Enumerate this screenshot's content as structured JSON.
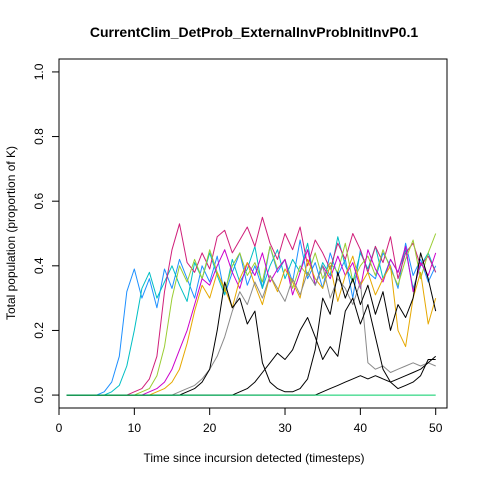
{
  "chart_data": {
    "type": "line",
    "title": "CurrentClim_DetProb_ExternalInvProbInitInvP0.1",
    "xlabel": "Time since incursion detected (timesteps)",
    "ylabel": "Total population (proportion of K)",
    "xlim": [
      0,
      51.5
    ],
    "ylim": [
      -0.04,
      1.04
    ],
    "x_ticks": [
      0,
      10,
      20,
      30,
      40,
      50
    ],
    "y_ticks": [
      0.0,
      0.2,
      0.4,
      0.6,
      0.8,
      1.0
    ],
    "x_tick_labels": [
      "0",
      "10",
      "20",
      "30",
      "40",
      "50"
    ],
    "y_tick_labels": [
      "0.0",
      "0.2",
      "0.4",
      "0.6",
      "0.8",
      "1.0"
    ],
    "grid": false,
    "legend": "none",
    "x": [
      1,
      2,
      3,
      4,
      5,
      6,
      7,
      8,
      9,
      10,
      11,
      12,
      13,
      14,
      15,
      16,
      17,
      18,
      19,
      20,
      21,
      22,
      23,
      24,
      25,
      26,
      27,
      28,
      29,
      30,
      31,
      32,
      33,
      34,
      35,
      36,
      37,
      38,
      39,
      40,
      41,
      42,
      43,
      44,
      45,
      46,
      47,
      48,
      49,
      50
    ],
    "series": [
      {
        "color": "#1E90FF",
        "values": [
          0,
          0,
          0,
          0,
          0,
          0.01,
          0.04,
          0.12,
          0.32,
          0.39,
          0.3,
          0.36,
          0.27,
          0.39,
          0.33,
          0.42,
          0.36,
          0.3,
          0.4,
          0.35,
          0.43,
          0.31,
          0.38,
          0.44,
          0.34,
          0.4,
          0.33,
          0.46,
          0.38,
          0.42,
          0.35,
          0.48,
          0.36,
          0.41,
          0.33,
          0.44,
          0.37,
          0.42,
          0.3,
          0.45,
          0.38,
          0.36,
          0.44,
          0.4,
          0.33,
          0.47,
          0.37,
          0.42,
          0.35,
          0.4
        ]
      },
      {
        "color": "#00BFC4",
        "values": [
          0,
          0,
          0,
          0,
          0,
          0,
          0.01,
          0.03,
          0.09,
          0.2,
          0.33,
          0.38,
          0.3,
          0.35,
          0.4,
          0.34,
          0.29,
          0.41,
          0.36,
          0.44,
          0.37,
          0.31,
          0.42,
          0.35,
          0.39,
          0.46,
          0.33,
          0.4,
          0.45,
          0.36,
          0.42,
          0.38,
          0.47,
          0.34,
          0.41,
          0.37,
          0.49,
          0.4,
          0.35,
          0.44,
          0.39,
          0.46,
          0.36,
          0.42,
          0.38,
          0.45,
          0.33,
          0.4,
          0.44,
          0.38
        ]
      },
      {
        "color": "#D01F7A",
        "values": [
          0,
          0,
          0,
          0,
          0,
          0,
          0,
          0,
          0,
          0.01,
          0.02,
          0.05,
          0.12,
          0.32,
          0.45,
          0.53,
          0.41,
          0.38,
          0.44,
          0.39,
          0.49,
          0.51,
          0.44,
          0.48,
          0.52,
          0.46,
          0.55,
          0.47,
          0.42,
          0.5,
          0.45,
          0.52,
          0.4,
          0.48,
          0.44,
          0.39,
          0.47,
          0.42,
          0.5,
          0.45,
          0.38,
          0.46,
          0.41,
          0.49,
          0.36,
          0.44,
          0.47,
          0.4,
          0.43,
          0.38
        ]
      },
      {
        "color": "#9ACD32",
        "values": [
          0,
          0,
          0,
          0,
          0,
          0,
          0,
          0,
          0,
          0,
          0.01,
          0.02,
          0.06,
          0.15,
          0.3,
          0.4,
          0.35,
          0.42,
          0.36,
          0.45,
          0.38,
          0.32,
          0.4,
          0.44,
          0.37,
          0.41,
          0.35,
          0.46,
          0.39,
          0.42,
          0.33,
          0.4,
          0.37,
          0.44,
          0.36,
          0.41,
          0.38,
          0.47,
          0.35,
          0.4,
          0.43,
          0.37,
          0.45,
          0.39,
          0.34,
          0.42,
          0.48,
          0.36,
          0.44,
          0.5
        ]
      },
      {
        "color": "#CC00CC",
        "values": [
          0,
          0,
          0,
          0,
          0,
          0,
          0,
          0,
          0,
          0,
          0,
          0.01,
          0.02,
          0.04,
          0.08,
          0.14,
          0.2,
          0.28,
          0.36,
          0.34,
          0.4,
          0.45,
          0.38,
          0.33,
          0.41,
          0.37,
          0.44,
          0.35,
          0.39,
          0.42,
          0.31,
          0.38,
          0.45,
          0.34,
          0.4,
          0.36,
          0.43,
          0.37,
          0.41,
          0.33,
          0.45,
          0.39,
          0.35,
          0.42,
          0.38,
          0.46,
          0.32,
          0.41,
          0.37,
          0.44
        ]
      },
      {
        "color": "#E6A800",
        "values": [
          0,
          0,
          0,
          0,
          0,
          0,
          0,
          0,
          0,
          0,
          0,
          0,
          0.01,
          0.02,
          0.04,
          0.08,
          0.16,
          0.26,
          0.34,
          0.3,
          0.38,
          0.33,
          0.27,
          0.36,
          0.41,
          0.34,
          0.28,
          0.37,
          0.32,
          0.39,
          0.35,
          0.3,
          0.42,
          0.36,
          0.33,
          0.4,
          0.29,
          0.37,
          0.43,
          0.34,
          0.38,
          0.31,
          0.36,
          0.4,
          0.2,
          0.15,
          0.3,
          0.38,
          0.22,
          0.3
        ]
      },
      {
        "color": "#8A8A8A",
        "values": [
          0,
          0,
          0,
          0,
          0,
          0,
          0,
          0,
          0,
          0,
          0,
          0,
          0,
          0,
          0,
          0.01,
          0.02,
          0.03,
          0.05,
          0.08,
          0.12,
          0.18,
          0.26,
          0.32,
          0.28,
          0.35,
          0.3,
          0.37,
          0.33,
          0.29,
          0.36,
          0.31,
          0.38,
          0.34,
          0.4,
          0.3,
          0.36,
          0.33,
          0.28,
          0.35,
          0.1,
          0.08,
          0.09,
          0.07,
          0.08,
          0.09,
          0.1,
          0.09,
          0.1,
          0.09
        ]
      },
      {
        "color": "#000000",
        "values": [
          0,
          0,
          0,
          0,
          0,
          0,
          0,
          0,
          0,
          0,
          0,
          0,
          0,
          0,
          0,
          0,
          0.01,
          0.02,
          0.04,
          0.08,
          0.2,
          0.35,
          0.27,
          0.3,
          0.22,
          0.26,
          0.1,
          0.04,
          0.02,
          0.01,
          0.01,
          0.02,
          0.05,
          0.14,
          0.3,
          0.25,
          0.38,
          0.3,
          0.36,
          0.28,
          0.34,
          0.25,
          0.32,
          0.2,
          0.28,
          0.24,
          0.3,
          0.44,
          0.36,
          0.26
        ]
      },
      {
        "color": "#000000",
        "values": [
          0,
          0,
          0,
          0,
          0,
          0,
          0,
          0,
          0,
          0,
          0,
          0,
          0,
          0,
          0,
          0,
          0,
          0,
          0,
          0,
          0,
          0,
          0,
          0.01,
          0.02,
          0.04,
          0.07,
          0.1,
          0.13,
          0.11,
          0.14,
          0.2,
          0.24,
          0.18,
          0.11,
          0.15,
          0.12,
          0.26,
          0.3,
          0.22,
          0.28,
          0.18,
          0.08,
          0.04,
          0.02,
          0.03,
          0.04,
          0.06,
          0.11,
          0.11
        ]
      },
      {
        "color": "#000000",
        "values": [
          0,
          0,
          0,
          0,
          0,
          0,
          0,
          0,
          0,
          0,
          0,
          0,
          0,
          0,
          0,
          0,
          0,
          0,
          0,
          0,
          0,
          0,
          0,
          0,
          0,
          0,
          0,
          0,
          0,
          0,
          0,
          0,
          0,
          0,
          0.01,
          0.02,
          0.03,
          0.04,
          0.05,
          0.06,
          0.05,
          0.06,
          0.05,
          0.04,
          0.05,
          0.06,
          0.07,
          0.08,
          0.1,
          0.12
        ]
      },
      {
        "color": "#00CD66",
        "values": [
          0,
          0,
          0,
          0,
          0,
          0,
          0,
          0,
          0,
          0,
          0,
          0,
          0,
          0,
          0,
          0,
          0,
          0,
          0,
          0,
          0,
          0,
          0,
          0,
          0,
          0,
          0,
          0,
          0,
          0,
          0,
          0,
          0,
          0,
          0,
          0,
          0,
          0,
          0,
          0,
          0,
          0,
          0,
          0,
          0,
          0,
          0,
          0,
          0,
          0
        ]
      }
    ]
  }
}
